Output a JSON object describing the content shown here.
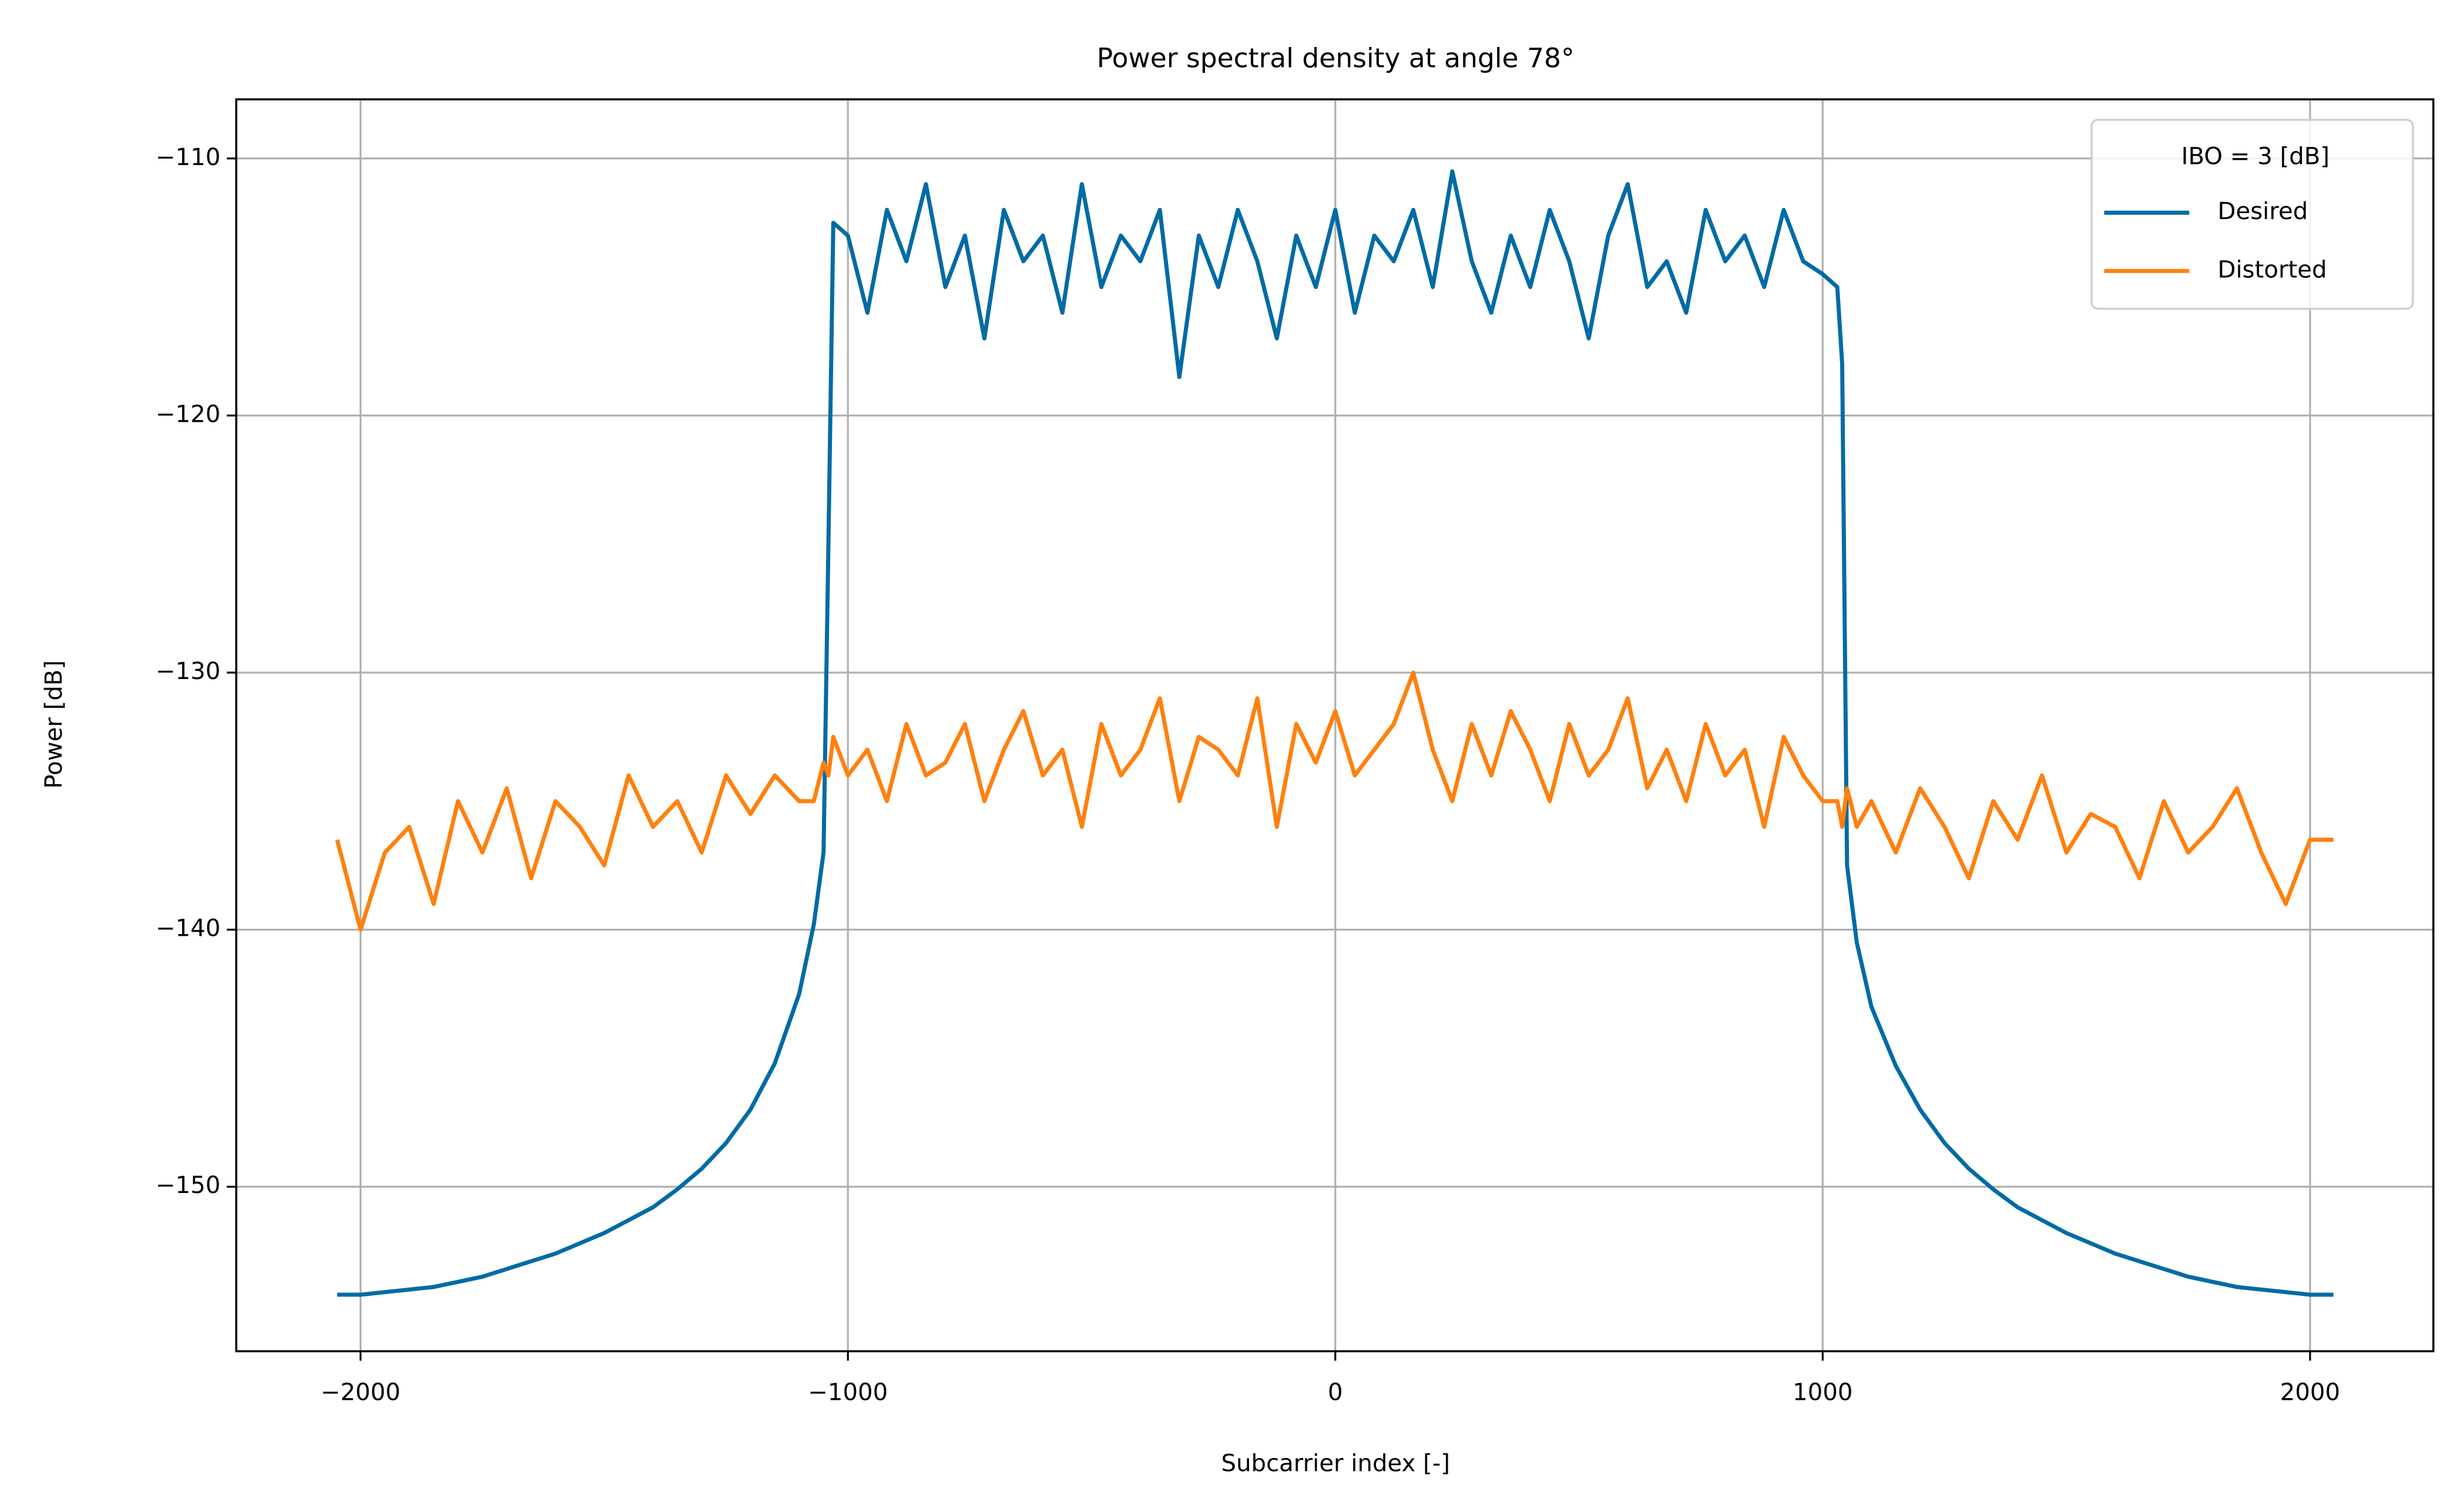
{
  "chart_data": {
    "type": "line",
    "title": "Power spectral density at angle 78°",
    "xlabel": "Subcarrier index [-]",
    "ylabel": "Power [dB]",
    "x": [
      -2048,
      -2000,
      -1950,
      -1900,
      -1850,
      -1800,
      -1750,
      -1700,
      -1650,
      -1600,
      -1550,
      -1500,
      -1450,
      -1400,
      -1350,
      -1300,
      -1250,
      -1200,
      -1150,
      -1100,
      -1070,
      -1050,
      -1040,
      -1030,
      -1000,
      -960,
      -920,
      -880,
      -840,
      -800,
      -760,
      -720,
      -680,
      -640,
      -600,
      -560,
      -520,
      -480,
      -440,
      -400,
      -360,
      -320,
      -280,
      -240,
      -200,
      -160,
      -120,
      -80,
      -40,
      0,
      40,
      80,
      120,
      160,
      200,
      240,
      280,
      320,
      360,
      400,
      440,
      480,
      520,
      560,
      600,
      640,
      680,
      720,
      760,
      800,
      840,
      880,
      920,
      960,
      1000,
      1030,
      1040,
      1050,
      1070,
      1100,
      1150,
      1200,
      1250,
      1300,
      1350,
      1400,
      1450,
      1500,
      1550,
      1600,
      1650,
      1700,
      1750,
      1800,
      1850,
      1900,
      1950,
      2000,
      2048
    ],
    "series": [
      {
        "name": "Desired",
        "color": "#006ba4",
        "values": [
          -154.2,
          -154.2,
          -154.1,
          -154.0,
          -153.9,
          -153.7,
          -153.5,
          -153.2,
          -152.9,
          -152.6,
          -152.2,
          -151.8,
          -151.3,
          -150.8,
          -150.1,
          -149.3,
          -148.3,
          -147.0,
          -145.2,
          -142.5,
          -139.8,
          -137,
          -125,
          -112.5,
          -113,
          -116,
          -112,
          -114,
          -111,
          -115,
          -113,
          -117,
          -112,
          -114,
          -113,
          -116,
          -111,
          -115,
          -113,
          -114,
          -112,
          -118.5,
          -113,
          -115,
          -112,
          -114,
          -117,
          -113,
          -115,
          -112,
          -116,
          -113,
          -114,
          -112,
          -115,
          -110.5,
          -114,
          -116,
          -113,
          -115,
          -112,
          -114,
          -117,
          -113,
          -111,
          -115,
          -114,
          -116,
          -112,
          -114,
          -113,
          -115,
          -112,
          -114,
          -114.5,
          -115,
          -118,
          -137.5,
          -140.5,
          -143,
          -145.3,
          -147,
          -148.3,
          -149.3,
          -150.1,
          -150.8,
          -151.3,
          -151.8,
          -152.2,
          -152.6,
          -152.9,
          -153.2,
          -153.5,
          -153.7,
          -153.9,
          -154.0,
          -154.1,
          -154.2,
          -154.2
        ]
      },
      {
        "name": "Distorted",
        "color": "#ff800e",
        "values": [
          -136.5,
          -140,
          -137,
          -136,
          -139,
          -135,
          -137,
          -134.5,
          -138,
          -135,
          -136,
          -137.5,
          -134,
          -136,
          -135,
          -137,
          -134,
          -135.5,
          -134,
          -135,
          -135,
          -133.5,
          -134,
          -132.5,
          -134,
          -133,
          -135,
          -132,
          -134,
          -133.5,
          -132,
          -135,
          -133,
          -131.5,
          -134,
          -133,
          -136,
          -132,
          -134,
          -133,
          -131,
          -135,
          -132.5,
          -133,
          -134,
          -131,
          -136,
          -132,
          -133.5,
          -131.5,
          -134,
          -133,
          -132,
          -130,
          -133,
          -135,
          -132,
          -134,
          -131.5,
          -133,
          -135,
          -132,
          -134,
          -133,
          -131,
          -134.5,
          -133,
          -135,
          -132,
          -134,
          -133,
          -136,
          -132.5,
          -134,
          -135,
          -135,
          -136,
          -134.5,
          -136,
          -135,
          -137,
          -134.5,
          -136,
          -138,
          -135,
          -136.5,
          -134,
          -137,
          -135.5,
          -136,
          -138,
          -135,
          -137,
          -136,
          -134.5,
          -137,
          -139,
          -136.5,
          -136.5
        ]
      }
    ],
    "xlim": [
      -2255,
      2253
    ],
    "ylim": [
      -156.4,
      -107.7
    ],
    "xticks": [
      {
        "value": -2000,
        "label": "−2000"
      },
      {
        "value": -1000,
        "label": "−1000"
      },
      0,
      1000,
      2000
    ],
    "yticks": [
      {
        "value": -150,
        "label": "−150"
      },
      {
        "value": -140,
        "label": "−140"
      },
      {
        "value": -130,
        "label": "−130"
      },
      {
        "value": -120,
        "label": "−120"
      },
      {
        "value": -110,
        "label": "−110"
      }
    ],
    "grid": true,
    "legend": {
      "title": "IBO = 3 [dB]",
      "loc": "upper right"
    }
  }
}
